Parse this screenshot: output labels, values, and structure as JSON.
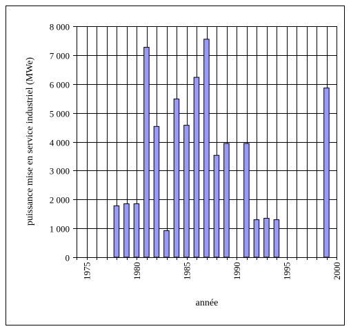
{
  "chart_data": {
    "type": "bar",
    "xlabel": "année",
    "ylabel": "puissance mise en service industriel (MWe)",
    "xlim": [
      1974,
      2000
    ],
    "ylim": [
      0,
      8000
    ],
    "x_tick_labels": [
      "1975",
      "1980",
      "1985",
      "1990",
      "1995",
      "2000"
    ],
    "x_tick_values": [
      1975,
      1980,
      1985,
      1990,
      1995,
      2000
    ],
    "y_tick_labels": [
      "0",
      "1 000",
      "2 000",
      "3 000",
      "4 000",
      "5 000",
      "6 000",
      "7 000",
      "8 000"
    ],
    "y_tick_values": [
      0,
      1000,
      2000,
      3000,
      4000,
      5000,
      6000,
      7000,
      8000
    ],
    "grid": true,
    "legend": "none",
    "bar_color": "#9999ff",
    "series": [
      {
        "x": [
          1978,
          1979,
          1980,
          1981,
          1982,
          1983,
          1984,
          1985,
          1986,
          1987,
          1988,
          1989,
          1991,
          1992,
          1993,
          1994,
          1999
        ],
        "values": [
          1780,
          1850,
          1850,
          7270,
          4530,
          920,
          5480,
          4570,
          6230,
          7550,
          3530,
          3940,
          3940,
          1300,
          1350,
          1300,
          5860
        ]
      }
    ]
  }
}
